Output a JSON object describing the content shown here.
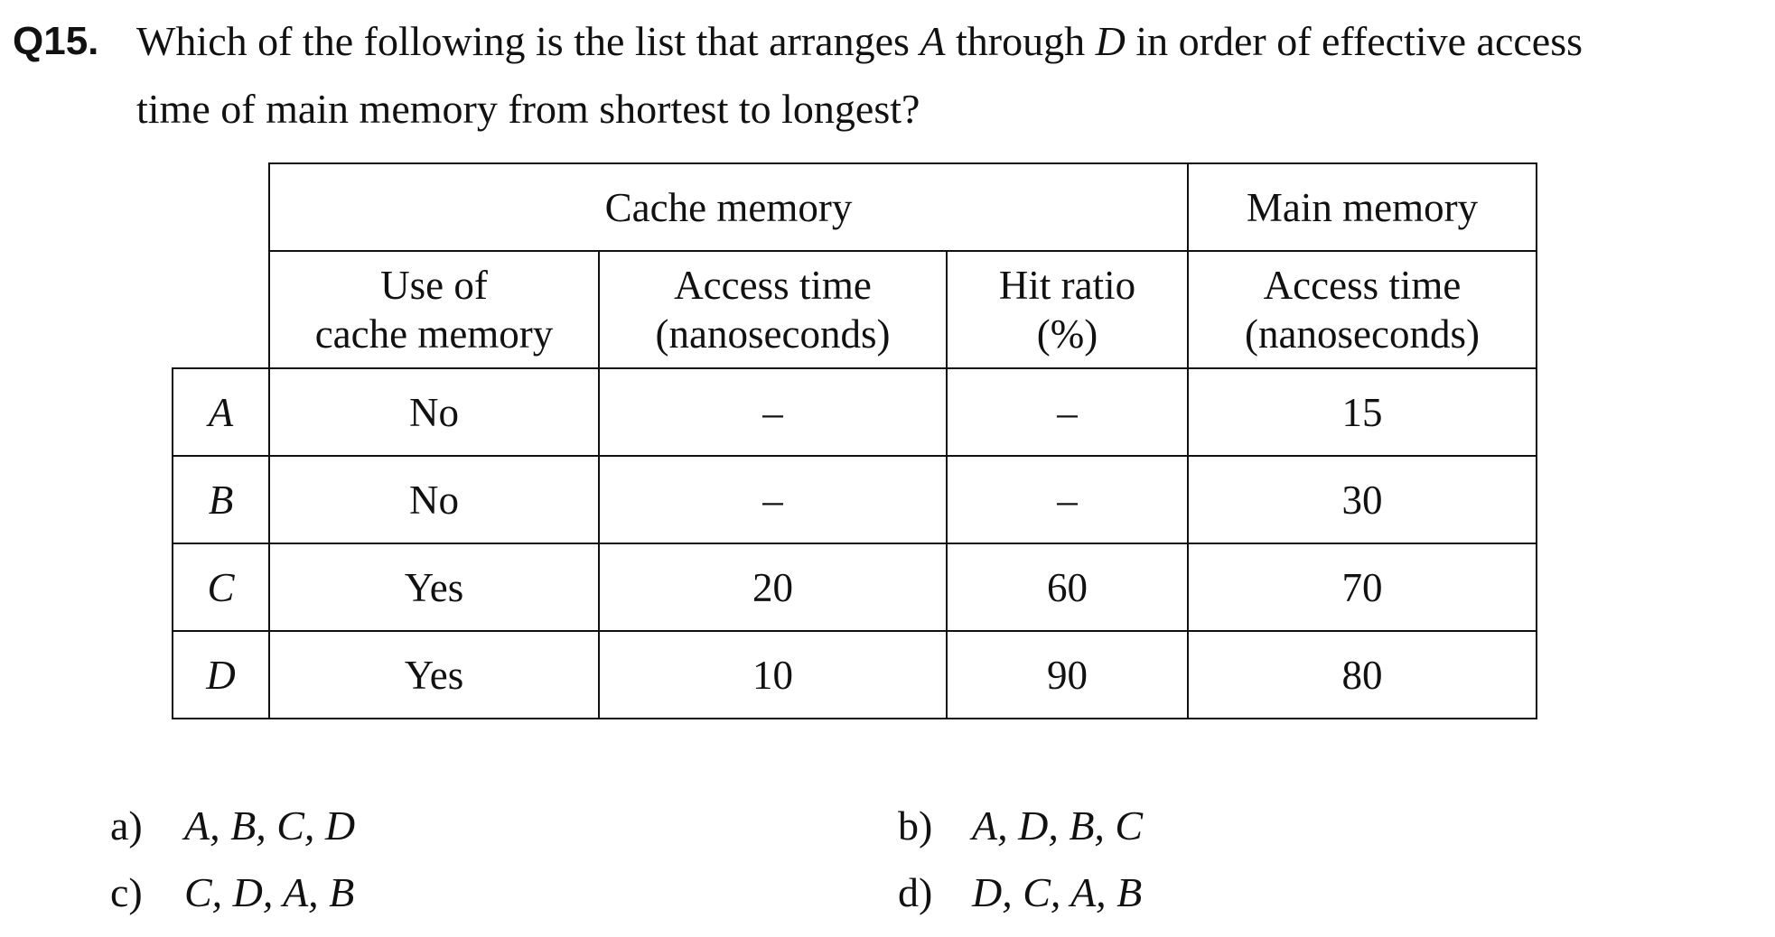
{
  "question": {
    "number": "Q15.",
    "text_before_a": "Which of the following is the list that arranges ",
    "var_a": "A",
    "text_through": " through ",
    "var_d": "D",
    "text_line1_end": " in order of effective access",
    "text_line2": "time of main memory from shortest to longest?"
  },
  "table": {
    "group_headers": {
      "cache": "Cache memory",
      "main": "Main memory"
    },
    "sub_headers": {
      "use_line1": "Use of",
      "use_line2": "cache memory",
      "cache_access_line1": "Access time",
      "cache_access_line2": "(nanoseconds)",
      "hit_line1": "Hit ratio",
      "hit_line2": "(%)",
      "main_access_line1": "Access time",
      "main_access_line2": "(nanoseconds)"
    },
    "rows": [
      {
        "label": "A",
        "use": "No",
        "cache_access": "–",
        "hit_ratio": "–",
        "main_access": "15"
      },
      {
        "label": "B",
        "use": "No",
        "cache_access": "–",
        "hit_ratio": "–",
        "main_access": "30"
      },
      {
        "label": "C",
        "use": "Yes",
        "cache_access": "20",
        "hit_ratio": "60",
        "main_access": "70"
      },
      {
        "label": "D",
        "use": "Yes",
        "cache_access": "10",
        "hit_ratio": "90",
        "main_access": "80"
      }
    ]
  },
  "choices": [
    {
      "label": "a)",
      "answer": "A, B, C, D"
    },
    {
      "label": "b)",
      "answer": "A, D, B, C"
    },
    {
      "label": "c)",
      "answer": "C, D, A, B"
    },
    {
      "label": "d)",
      "answer": "D, C, A, B"
    }
  ]
}
